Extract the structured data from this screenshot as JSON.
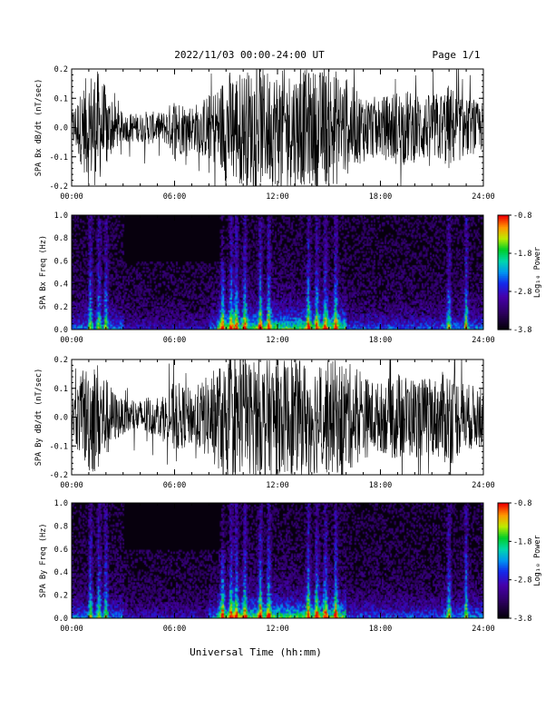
{
  "header": {
    "date_title": "2022/11/03  00:00-24:00 UT",
    "page_label": "Page 1/1"
  },
  "xlabel": "Universal Time (hh:mm)",
  "colors": {
    "trace": "#000000",
    "spec_background": "#07000d"
  },
  "chart_data": [
    {
      "id": "bx-dbdt",
      "type": "line",
      "ylabel": "SPA Bx dB/dt (nT/sec)",
      "xlim": [
        0,
        24
      ],
      "ylim": [
        -0.2,
        0.2
      ],
      "x_ticks": [
        "00:00",
        "06:00",
        "12:00",
        "18:00",
        "24:00"
      ],
      "y_ticks": [
        "-0.2",
        "-0.1",
        "0.0",
        "0.1",
        "0.2"
      ],
      "envelope": {
        "x_hours": [
          0,
          0.5,
          1,
          1.5,
          2,
          2.5,
          3,
          3.5,
          4,
          4.5,
          5,
          5.5,
          6,
          6.5,
          7,
          7.5,
          8,
          8.5,
          9,
          9.5,
          10,
          10.5,
          11,
          11.5,
          12,
          12.5,
          13,
          13.5,
          14,
          14.5,
          15,
          15.5,
          16,
          16.5,
          17,
          17.5,
          18,
          18.5,
          19,
          19.5,
          20,
          20.5,
          21,
          21.5,
          22,
          22.5,
          23,
          23.5,
          24
        ],
        "amplitude": [
          0.06,
          0.12,
          0.2,
          0.2,
          0.14,
          0.08,
          0.05,
          0.05,
          0.05,
          0.06,
          0.05,
          0.06,
          0.11,
          0.09,
          0.08,
          0.09,
          0.12,
          0.14,
          0.2,
          0.2,
          0.2,
          0.2,
          0.2,
          0.2,
          0.2,
          0.2,
          0.2,
          0.2,
          0.2,
          0.2,
          0.2,
          0.2,
          0.17,
          0.13,
          0.12,
          0.11,
          0.1,
          0.12,
          0.13,
          0.13,
          0.12,
          0.12,
          0.11,
          0.13,
          0.15,
          0.12,
          0.1,
          0.09,
          0.08
        ]
      }
    },
    {
      "id": "bx-spec",
      "type": "heatmap",
      "ylabel": "SPA Bx Freq (Hz)",
      "colorbar_label": "Log₁₀ Power",
      "colorbar_ticks": [
        "-0.8",
        "-1.8",
        "-2.8",
        "-3.8"
      ],
      "clim": [
        -3.8,
        -0.8
      ],
      "xlim": [
        0,
        24
      ],
      "ylim": [
        0,
        1
      ],
      "x_ticks": [
        "00:00",
        "06:00",
        "12:00",
        "18:00",
        "24:00"
      ],
      "y_ticks": [
        "0.0",
        "0.2",
        "0.4",
        "0.6",
        "0.8",
        "1.0"
      ],
      "bursts_hours": [
        1.1,
        1.6,
        2.0,
        8.8,
        9.3,
        9.6,
        10.1,
        11.0,
        11.5,
        13.8,
        14.3,
        14.8,
        15.4,
        22.0,
        23.0
      ]
    },
    {
      "id": "by-dbdt",
      "type": "line",
      "ylabel": "SPA By dB/dt (nT/sec)",
      "xlim": [
        0,
        24
      ],
      "ylim": [
        -0.2,
        0.2
      ],
      "x_ticks": [
        "00:00",
        "06:00",
        "12:00",
        "18:00",
        "24:00"
      ],
      "y_ticks": [
        "-0.2",
        "-0.1",
        "0.0",
        "0.1",
        "0.2"
      ],
      "envelope": {
        "x_hours": [
          0,
          0.5,
          1,
          1.5,
          2,
          2.5,
          3,
          3.5,
          4,
          4.5,
          5,
          5.5,
          6,
          6.5,
          7,
          7.5,
          8,
          8.5,
          9,
          9.5,
          10,
          10.5,
          11,
          11.5,
          12,
          12.5,
          13,
          13.5,
          14,
          14.5,
          15,
          15.5,
          16,
          16.5,
          17,
          17.5,
          18,
          18.5,
          19,
          19.5,
          20,
          20.5,
          21,
          21.5,
          22,
          22.5,
          23,
          23.5,
          24
        ],
        "amplitude": [
          0.07,
          0.14,
          0.2,
          0.2,
          0.14,
          0.09,
          0.06,
          0.06,
          0.06,
          0.07,
          0.06,
          0.08,
          0.13,
          0.11,
          0.1,
          0.12,
          0.15,
          0.18,
          0.2,
          0.2,
          0.2,
          0.2,
          0.2,
          0.2,
          0.2,
          0.2,
          0.2,
          0.2,
          0.2,
          0.2,
          0.2,
          0.2,
          0.2,
          0.17,
          0.15,
          0.13,
          0.12,
          0.14,
          0.16,
          0.15,
          0.14,
          0.14,
          0.13,
          0.15,
          0.18,
          0.14,
          0.12,
          0.11,
          0.1
        ]
      }
    },
    {
      "id": "by-spec",
      "type": "heatmap",
      "ylabel": "SPA By Freq (Hz)",
      "colorbar_label": "Log₁₀ Power",
      "colorbar_ticks": [
        "-0.8",
        "-1.8",
        "-2.8",
        "-3.8"
      ],
      "clim": [
        -3.8,
        -0.8
      ],
      "xlim": [
        0,
        24
      ],
      "ylim": [
        0,
        1
      ],
      "x_ticks": [
        "00:00",
        "06:00",
        "12:00",
        "18:00",
        "24:00"
      ],
      "y_ticks": [
        "0.0",
        "0.2",
        "0.4",
        "0.6",
        "0.8",
        "1.0"
      ],
      "bursts_hours": [
        1.1,
        1.6,
        2.0,
        8.8,
        9.3,
        9.6,
        10.1,
        11.0,
        11.5,
        13.8,
        14.3,
        14.8,
        15.4,
        22.0,
        23.0
      ]
    }
  ]
}
